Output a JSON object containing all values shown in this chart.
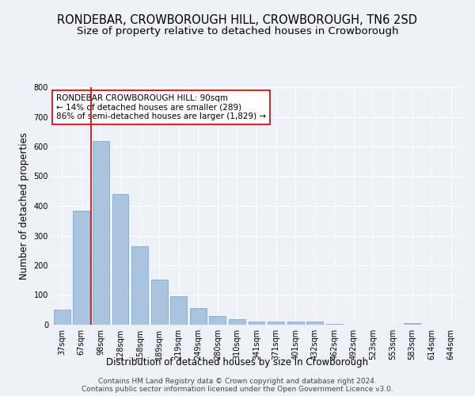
{
  "title_line1": "RONDEBAR, CROWBOROUGH HILL, CROWBOROUGH, TN6 2SD",
  "title_line2": "Size of property relative to detached houses in Crowborough",
  "xlabel": "Distribution of detached houses by size in Crowborough",
  "ylabel": "Number of detached properties",
  "categories": [
    "37sqm",
    "67sqm",
    "98sqm",
    "128sqm",
    "158sqm",
    "189sqm",
    "219sqm",
    "249sqm",
    "280sqm",
    "310sqm",
    "341sqm",
    "371sqm",
    "401sqm",
    "432sqm",
    "462sqm",
    "492sqm",
    "523sqm",
    "553sqm",
    "583sqm",
    "614sqm",
    "644sqm"
  ],
  "values": [
    50,
    385,
    620,
    440,
    265,
    153,
    97,
    57,
    30,
    18,
    10,
    10,
    10,
    12,
    3,
    0,
    0,
    0,
    5,
    0,
    0
  ],
  "bar_color": "#aac4e0",
  "bar_edge_color": "#6ba3d0",
  "vline_color": "#cc0000",
  "annotation_text": "RONDEBAR CROWBOROUGH HILL: 90sqm\n← 14% of detached houses are smaller (289)\n86% of semi-detached houses are larger (1,829) →",
  "annotation_box_color": "white",
  "annotation_box_edge": "#cc0000",
  "ylim": [
    0,
    800
  ],
  "yticks": [
    0,
    100,
    200,
    300,
    400,
    500,
    600,
    700,
    800
  ],
  "background_color": "#eef2f8",
  "grid_color": "white",
  "footer_line1": "Contains HM Land Registry data © Crown copyright and database right 2024.",
  "footer_line2": "Contains public sector information licensed under the Open Government Licence v3.0.",
  "title_fontsize": 10.5,
  "subtitle_fontsize": 9.5,
  "axis_label_fontsize": 8.5,
  "tick_fontsize": 7,
  "annotation_fontsize": 7.5,
  "footer_fontsize": 6.5
}
